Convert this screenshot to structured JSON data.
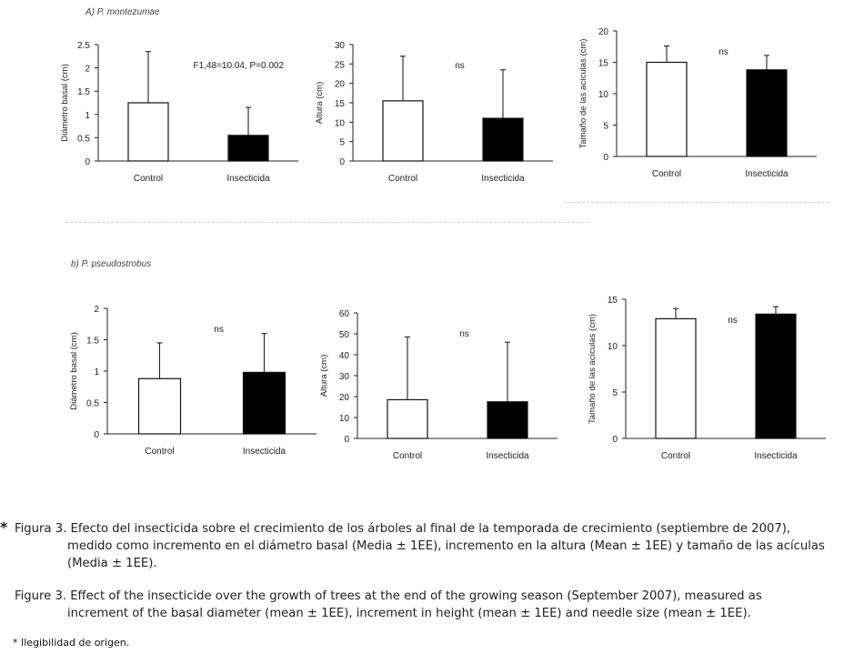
{
  "panels": {
    "a_label": "A) P. montezumae",
    "b_label": "b) P. pseudostrobus"
  },
  "chart_data": [
    {
      "id": "a-diametro",
      "type": "bar",
      "categories": [
        "Control",
        "Insecticida"
      ],
      "values": [
        1.25,
        0.55
      ],
      "errors": [
        1.1,
        0.6
      ],
      "ylabel": "Diámetro basal (cm)",
      "ylim": [
        0,
        2.5
      ],
      "yticks": [
        0,
        0.5,
        1,
        1.5,
        2,
        2.5
      ],
      "ytick_labels": [
        "0",
        "0.5",
        "1",
        "1.5",
        "2",
        "2.5"
      ],
      "annotation": "F1,48=10.04, P=0.002",
      "fills": [
        "#ffffff",
        "#000000"
      ]
    },
    {
      "id": "a-altura",
      "type": "bar",
      "categories": [
        "Control",
        "Insecticida"
      ],
      "values": [
        15.5,
        11
      ],
      "errors": [
        11.5,
        12.5
      ],
      "ylabel": "Altura (cm)",
      "ylim": [
        0,
        30
      ],
      "yticks": [
        0,
        5,
        10,
        15,
        20,
        25,
        30
      ],
      "ytick_labels": [
        "0",
        "5",
        "10",
        "15",
        "20",
        "25",
        "30"
      ],
      "annotation": "ns",
      "fills": [
        "#ffffff",
        "#000000"
      ]
    },
    {
      "id": "a-aciculas",
      "type": "bar",
      "categories": [
        "Control",
        "Insecticida"
      ],
      "values": [
        15,
        13.8
      ],
      "errors": [
        2.6,
        2.3
      ],
      "ylabel": "Tamaño de las acículas (cm)",
      "ylim": [
        0,
        20
      ],
      "yticks": [
        0,
        5,
        10,
        15,
        20
      ],
      "ytick_labels": [
        "0",
        "5",
        "10",
        "15",
        "20"
      ],
      "annotation": "ns",
      "fills": [
        "#ffffff",
        "#000000"
      ]
    },
    {
      "id": "b-diametro",
      "type": "bar",
      "categories": [
        "Control",
        "Insecticida"
      ],
      "values": [
        0.88,
        0.98
      ],
      "errors": [
        0.57,
        0.62
      ],
      "ylabel": "Diámetro basal (cm)",
      "ylim": [
        0,
        2
      ],
      "yticks": [
        0,
        0.5,
        1,
        1.5,
        2
      ],
      "ytick_labels": [
        "0",
        "0.5",
        "1",
        "1.5",
        "2"
      ],
      "annotation": "ns",
      "fills": [
        "#ffffff",
        "#000000"
      ]
    },
    {
      "id": "b-altura",
      "type": "bar",
      "categories": [
        "Control",
        "Insecticida"
      ],
      "values": [
        18.5,
        17.5
      ],
      "errors": [
        30,
        28.5
      ],
      "ylabel": "Altura (cm)",
      "ylim": [
        0,
        60
      ],
      "yticks": [
        0,
        10,
        20,
        30,
        40,
        50,
        60
      ],
      "ytick_labels": [
        "0",
        "10",
        "20",
        "30",
        "40",
        "50",
        "60"
      ],
      "annotation": "ns",
      "fills": [
        "#ffffff",
        "#000000"
      ]
    },
    {
      "id": "b-aciculas",
      "type": "bar",
      "categories": [
        "Control",
        "Insecticida"
      ],
      "values": [
        12.9,
        13.4
      ],
      "errors": [
        1.1,
        0.8
      ],
      "ylabel": "Tamaño de las acículas (cm)",
      "ylim": [
        0,
        15
      ],
      "yticks": [
        0,
        5,
        10,
        15
      ],
      "ytick_labels": [
        "0",
        "5",
        "10",
        "15"
      ],
      "annotation": "ns",
      "fills": [
        "#ffffff",
        "#000000"
      ]
    }
  ],
  "caption": {
    "star": "*",
    "es_line1": "Figura 3. Efecto del insecticida sobre el crecimiento de los árboles al final de la temporada de crecimiento (septiembre de 2007),",
    "es_rest": "medido como incremento en el diámetro basal (Media ± 1EE), incremento en la altura (Mean ± 1EE) y tamaño de las acículas (Media ± 1EE).",
    "en_line1": "Figure 3. Effect of the insecticide over the growth of trees at the end of the growing season (September 2007), measured as",
    "en_rest": "increment of the basal diameter (mean ± 1EE), increment in height (mean ± 1EE) and needle size (mean ± 1EE)."
  },
  "note": "* Ilegibilidad de origen."
}
